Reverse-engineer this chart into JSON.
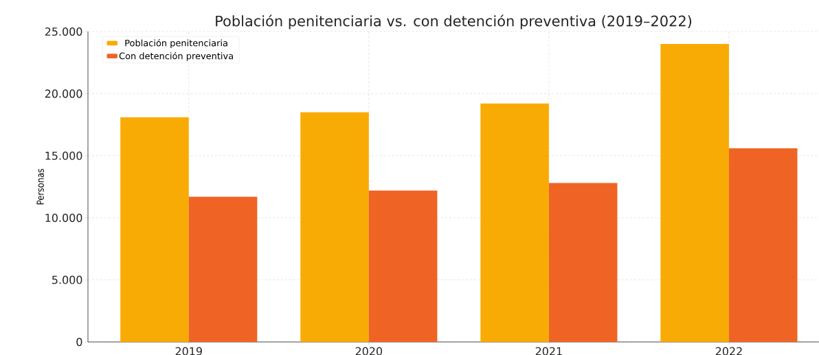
{
  "chart_data": {
    "type": "bar",
    "title": "Población penitenciaria vs. con detención preventiva (2019–2022)",
    "ylabel": "Personas",
    "categories": [
      "2019",
      "2020",
      "2021",
      "2022"
    ],
    "series": [
      {
        "name": "Población penitenciaria",
        "color": "#f9ab05",
        "values": [
          18100,
          18500,
          19200,
          24000
        ]
      },
      {
        "name": "Con detención preventiva",
        "color": "#ef6424",
        "values": [
          11700,
          12200,
          12800,
          15600
        ]
      }
    ],
    "ylim": [
      0,
      25000
    ],
    "yticks": [
      0,
      {
        "value": 5000,
        "label": "5.000"
      },
      {
        "value": 10000,
        "label": "10.000"
      },
      {
        "value": 15000,
        "label": "15.000"
      },
      {
        "value": 20000,
        "label": "20.000"
      },
      {
        "value": 25000,
        "label": "25.000"
      }
    ],
    "grid": true,
    "legend": "top left"
  }
}
